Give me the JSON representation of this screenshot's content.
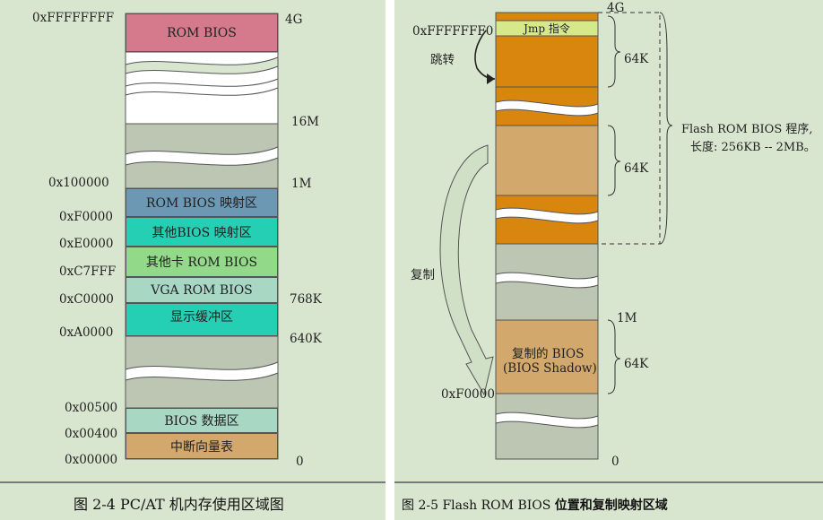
{
  "left": {
    "addresses": [
      "0xFFFFFFFF",
      "0x100000",
      "0xF0000",
      "0xE0000",
      "0xC7FFF",
      "0xC0000",
      "0xA0000",
      "0x00500",
      "0x00400",
      "0x00000"
    ],
    "sizes": [
      "4G",
      "16M",
      "1M",
      "768K",
      "640K",
      "0"
    ],
    "segments": [
      "ROM BIOS",
      "ROM BIOS 映射区",
      "其他BIOS 映射区",
      "其他卡 ROM BIOS",
      "VGA ROM BIOS",
      "显示缓冲区",
      "BIOS 数据区",
      "中断向量表"
    ],
    "caption": "图 2-4 PC/AT 机内存使用区域图"
  },
  "right": {
    "jmp_label": "Jmp 指令",
    "addr_top": "0xFFFFFFF0",
    "jump_label": "跳转",
    "size_4g": "4G",
    "size_64k_1": "64K",
    "size_64k_2": "64K",
    "flash_line1": "Flash ROM BIOS 程序,",
    "flash_line2": "长度: 256KB -- 2MB。",
    "copy_label": "复制",
    "size_1m": "1M",
    "shadow_line1": "复制的 BIOS",
    "shadow_line2": "(BIOS Shadow)",
    "size_64k_3": "64K",
    "addr_f0000": "0xF0000",
    "size_0": "0",
    "caption_prefix": "图 2-5 Flash ROM BIOS ",
    "caption_bold": "位置和复制映射区域"
  },
  "colors": {
    "panel_bg": "#d9e6cf",
    "rom_bios": "#d47a8c",
    "gray_mem": "#bcc6b3",
    "rom_map": "#6c98b4",
    "other_bios": "#25cfb4",
    "other_card": "#93d98a",
    "vga": "#a8d8c4",
    "display_buf": "#25cfb4",
    "bios_data": "#a8d8c4",
    "ivt": "#d3a86c",
    "flash_orange": "#d9860f",
    "flash_tan": "#d3a86c",
    "jmp_green": "#d5e98a"
  }
}
